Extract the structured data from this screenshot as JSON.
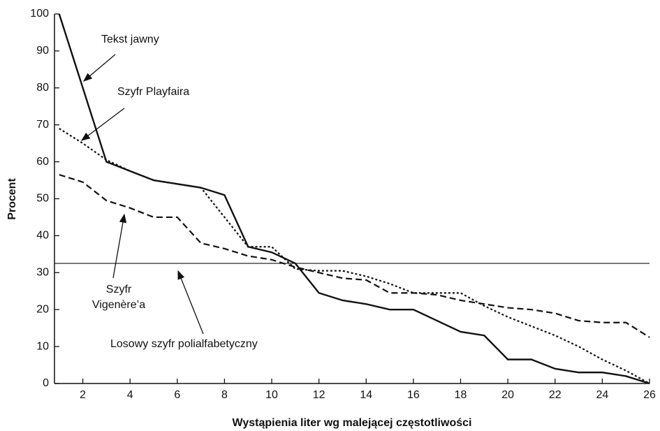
{
  "chart_data": {
    "type": "line",
    "x_label": "Wystąpienia liter wg malejącej częstotliwości",
    "y_label": "Procent",
    "x": [
      1,
      2,
      3,
      4,
      5,
      6,
      7,
      8,
      9,
      10,
      11,
      12,
      13,
      14,
      15,
      16,
      17,
      18,
      19,
      20,
      21,
      22,
      23,
      24,
      25,
      26
    ],
    "series": [
      {
        "name": "Tekst jawny",
        "color": "#111111",
        "style": "solid",
        "values": [
          100,
          80,
          60,
          57.5,
          55,
          54,
          53,
          51,
          37,
          35.5,
          32.5,
          24.5,
          22.5,
          21.5,
          20,
          20,
          17,
          14,
          13,
          6.5,
          6.5,
          4,
          3,
          3,
          2,
          0
        ]
      },
      {
        "name": "Szyfr Playfaira",
        "color": "#111111",
        "style": "dotted",
        "values": [
          69,
          65,
          60.5,
          57.5,
          55,
          54,
          53,
          45,
          37,
          37,
          31,
          30.5,
          30.5,
          29,
          27,
          24.5,
          24.5,
          24.5,
          21,
          18,
          15.5,
          13,
          10,
          6.5,
          3.5,
          0
        ]
      },
      {
        "name": "Szyfr Vigenère’a",
        "color": "#111111",
        "style": "dashed",
        "values": [
          56.5,
          54.5,
          49.5,
          47.5,
          45,
          45,
          38,
          36.5,
          34.5,
          33.5,
          31.5,
          30,
          28.5,
          28,
          24.5,
          24.5,
          24,
          22.5,
          21.5,
          20.5,
          20,
          19,
          17,
          16.5,
          16.5,
          12.5
        ]
      }
    ],
    "reference_line": {
      "name": "Losowy szyfr polialfabetyczny",
      "value": 32.5,
      "color": "#111111"
    },
    "xlim": [
      0.8,
      26
    ],
    "ylim": [
      0,
      100
    ],
    "xticks": [
      2,
      4,
      6,
      8,
      10,
      12,
      14,
      16,
      18,
      20,
      22,
      24,
      26
    ],
    "yticks": [
      0,
      10,
      20,
      30,
      40,
      50,
      60,
      70,
      80,
      90,
      100
    ]
  }
}
